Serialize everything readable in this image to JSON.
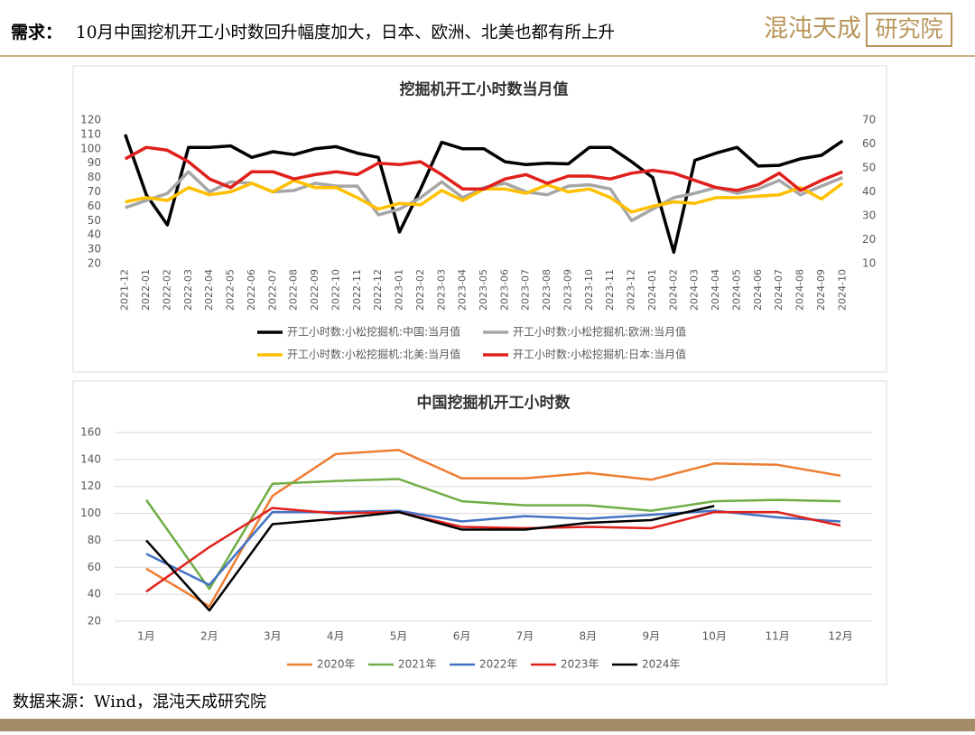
{
  "header": {
    "title_label": "需求：",
    "title": "10月中国挖机开工小时数回升幅度加大，日本、欧洲、北美也都有所上升",
    "logo_main": "混沌天成",
    "logo_box": "研究院"
  },
  "chart_data": [
    {
      "type": "line",
      "title": "挖掘机开工小时数当月值",
      "categories": [
        "2021-12",
        "2022-01",
        "2022-02",
        "2022-03",
        "2022-04",
        "2022-05",
        "2022-06",
        "2022-07",
        "2022-08",
        "2022-09",
        "2022-10",
        "2022-11",
        "2022-12",
        "2023-01",
        "2023-02",
        "2023-03",
        "2023-04",
        "2023-05",
        "2023-06",
        "2023-07",
        "2023-08",
        "2023-09",
        "2023-10",
        "2023-11",
        "2023-12",
        "2024-01",
        "2024-02",
        "2024-03",
        "2024-04",
        "2024-05",
        "2024-06",
        "2024-07",
        "2024-08",
        "2024-09",
        "2024-10"
      ],
      "ylim": [
        20,
        120
      ],
      "yticks": [
        20,
        30,
        40,
        50,
        60,
        70,
        80,
        90,
        100,
        110,
        120
      ],
      "y2lim": [
        10,
        70
      ],
      "y2ticks": [
        10,
        20,
        30,
        40,
        50,
        60,
        70
      ],
      "grid": false,
      "series": [
        {
          "name": "开工小时数:小松挖掘机:中国:当月值",
          "color": "#000000",
          "values": [
            110,
            68,
            47,
            101,
            101,
            102,
            94,
            98,
            96,
            100,
            101.5,
            97,
            94,
            42,
            72,
            104.5,
            100,
            100,
            91,
            89,
            90,
            89.5,
            101,
            101,
            91,
            80,
            28,
            92,
            97,
            101,
            88,
            88.5,
            93,
            95.5,
            105.5
          ]
        },
        {
          "name": "开工小时数:小松挖掘机:欧洲:当月值",
          "color": "#a6a6a6",
          "axis": "y2",
          "values": [
            33.4,
            36.4,
            39.4,
            48.4,
            40,
            44.2,
            43.6,
            40,
            40.6,
            43.6,
            42.4,
            42.4,
            30.4,
            32.8,
            37.6,
            44.2,
            37.6,
            41.8,
            43.6,
            40,
            38.8,
            42.4,
            43,
            41.2,
            28,
            32.8,
            37.6,
            39.4,
            41.8,
            39.4,
            41.2,
            44.8,
            38.8,
            42.4,
            46
          ]
        },
        {
          "name": "开工小时数:小松挖掘机:北美:当月值",
          "color": "#ffc000",
          "axis": "y2",
          "values": [
            35.8,
            37.6,
            36.4,
            41.8,
            38.8,
            40,
            43.6,
            40,
            44.8,
            41.8,
            41.8,
            37.6,
            32.8,
            35.2,
            34.6,
            40.6,
            36.4,
            41.2,
            41.2,
            39.4,
            43,
            40,
            41.2,
            37.6,
            31.6,
            34,
            35.8,
            35.2,
            37.6,
            37.6,
            38.2,
            38.8,
            41.8,
            37,
            43.6
          ]
        },
        {
          "name": "开工小时数:小松挖掘机:日本:当月值",
          "color": "#e0201c",
          "axis": "y2",
          "values": [
            53.8,
            58.6,
            57.4,
            52.6,
            45.4,
            41.8,
            48.4,
            48.4,
            45.4,
            47.2,
            48.4,
            47.2,
            52,
            51.4,
            52.6,
            47.2,
            41.2,
            41.2,
            45.4,
            47.2,
            43.6,
            46.6,
            46.6,
            45.4,
            47.8,
            49,
            47.8,
            44.8,
            41.8,
            40.6,
            43,
            47.8,
            40.6,
            44.8,
            48.4
          ]
        }
      ]
    },
    {
      "type": "line",
      "title": "中国挖掘机开工小时数",
      "categories": [
        "1月",
        "2月",
        "3月",
        "4月",
        "5月",
        "6月",
        "7月",
        "8月",
        "9月",
        "10月",
        "11月",
        "12月"
      ],
      "ylim": [
        20,
        160
      ],
      "yticks": [
        20,
        40,
        60,
        80,
        100,
        120,
        140,
        160
      ],
      "grid": true,
      "series": [
        {
          "name": "2020年",
          "color": "#ed7d31",
          "values": [
            59,
            31,
            113,
            144,
            147,
            126,
            126,
            130,
            125,
            137,
            136,
            128
          ]
        },
        {
          "name": "2021年",
          "color": "#70ad47",
          "values": [
            110,
            44,
            122,
            124,
            125.5,
            109,
            106,
            106,
            102,
            109,
            110,
            109
          ]
        },
        {
          "name": "2022年",
          "color": "#4472c4",
          "values": [
            70,
            47,
            101,
            101,
            102,
            94,
            98,
            96,
            99,
            102,
            97,
            94
          ]
        },
        {
          "name": "2023年",
          "color": "#e0201c",
          "values": [
            42,
            75,
            104,
            100,
            101,
            90,
            89,
            90,
            89,
            101,
            101,
            91
          ]
        },
        {
          "name": "2024年",
          "color": "#000000",
          "values": [
            80,
            28,
            92,
            96,
            101,
            88,
            88,
            93,
            95,
            105.5,
            null,
            null
          ]
        }
      ]
    }
  ],
  "footer": {
    "source": "数据来源：Wind，混沌天成研究院"
  }
}
